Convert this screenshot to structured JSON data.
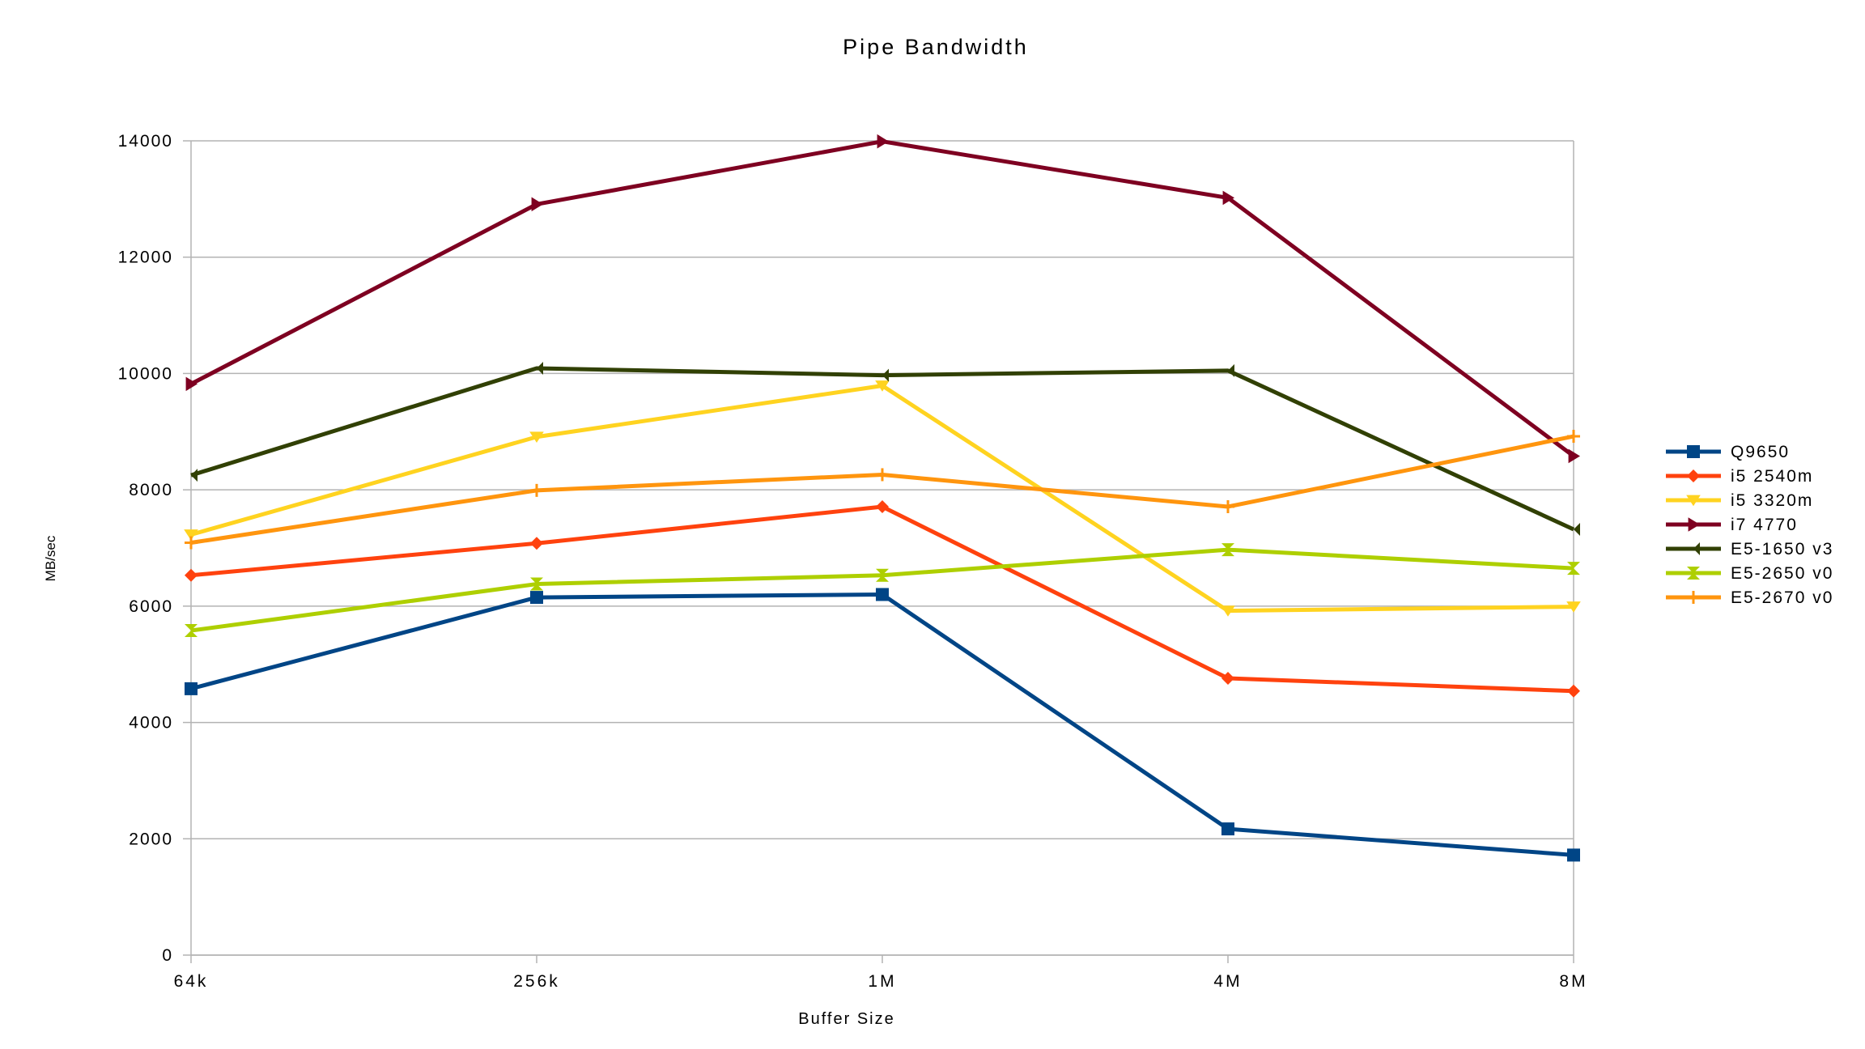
{
  "chart_data": {
    "type": "line",
    "title": "Pipe Bandwidth",
    "xlabel": "Buffer Size",
    "ylabel": "MB/sec",
    "categories": [
      "64k",
      "256k",
      "1M",
      "4M",
      "8M"
    ],
    "ylim": [
      0,
      14000
    ],
    "yticks": [
      0,
      2000,
      4000,
      6000,
      8000,
      10000,
      12000,
      14000
    ],
    "grid": "horizontal",
    "legend_position": "right",
    "series": [
      {
        "name": "Q9650",
        "color": "#004586",
        "marker": "square",
        "values": [
          4580,
          6150,
          6200,
          2170,
          1720
        ]
      },
      {
        "name": "i5 2540m",
        "color": "#ff420e",
        "marker": "diamond",
        "values": [
          6530,
          7080,
          7710,
          4760,
          4540
        ]
      },
      {
        "name": "i5 3320m",
        "color": "#ffd320",
        "marker": "triangle-down",
        "values": [
          7230,
          8910,
          9790,
          5920,
          5990
        ]
      },
      {
        "name": "i7 4770",
        "color": "#7e0021",
        "marker": "triangle-right",
        "values": [
          9820,
          12910,
          13990,
          13020,
          8580
        ]
      },
      {
        "name": "E5-1650 v3",
        "color": "#314004",
        "marker": "bowtie",
        "values": [
          8250,
          10090,
          9970,
          10050,
          7320
        ]
      },
      {
        "name": "E5-2650 v0",
        "color": "#aecf00",
        "marker": "hourglass",
        "values": [
          5580,
          6380,
          6530,
          6970,
          6650
        ]
      },
      {
        "name": "E5-2670 v0",
        "color": "#ff950e",
        "marker": "plus",
        "values": [
          7090,
          7990,
          8260,
          7710,
          8920
        ]
      }
    ]
  }
}
